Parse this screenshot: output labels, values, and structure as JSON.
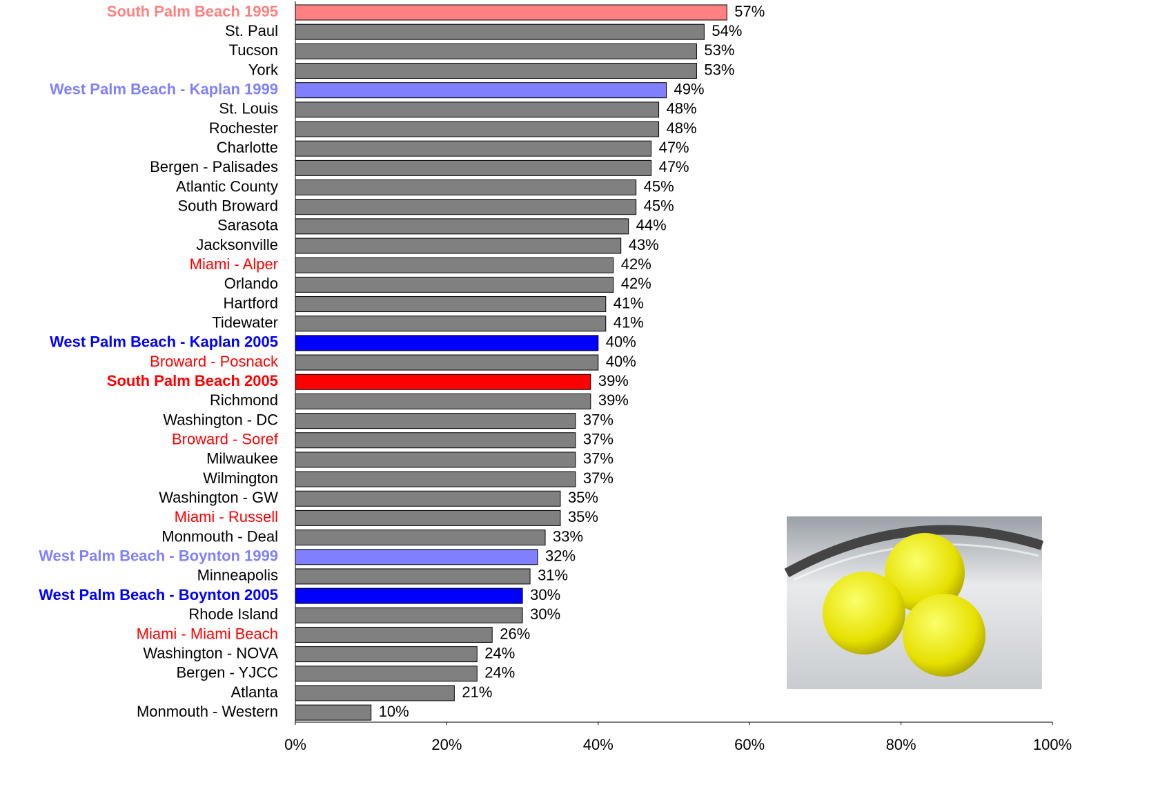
{
  "chart_data": {
    "type": "bar",
    "orientation": "horizontal",
    "categories": [
      "South Palm Beach 1995",
      "St. Paul",
      "Tucson",
      "York",
      "West Palm Beach - Kaplan 1999",
      "St. Louis",
      "Rochester",
      "Charlotte",
      "Bergen - Palisades",
      "Atlantic County",
      "South Broward",
      "Sarasota",
      "Jacksonville",
      "Miami - Alper",
      "Orlando",
      "Hartford",
      "Tidewater",
      "West Palm Beach - Kaplan 2005",
      "Broward - Posnack",
      "South Palm Beach 2005",
      "Richmond",
      "Washington - DC",
      "Broward - Soref",
      "Milwaukee",
      "Wilmington",
      "Washington - GW",
      "Miami - Russell",
      "Monmouth - Deal",
      "West Palm Beach - Boynton 1999",
      "Minneapolis",
      "West Palm Beach - Boynton 2005",
      "Rhode Island",
      "Miami - Miami Beach",
      "Washington - NOVA",
      "Bergen - YJCC",
      "Atlanta",
      "Monmouth - Western"
    ],
    "values": [
      57,
      54,
      53,
      53,
      49,
      48,
      48,
      47,
      47,
      45,
      45,
      44,
      43,
      42,
      42,
      41,
      41,
      40,
      40,
      39,
      39,
      37,
      37,
      37,
      37,
      35,
      35,
      33,
      32,
      31,
      30,
      30,
      26,
      24,
      24,
      21,
      10
    ],
    "value_labels": [
      "57%",
      "54%",
      "53%",
      "53%",
      "49%",
      "48%",
      "48%",
      "47%",
      "47%",
      "45%",
      "45%",
      "44%",
      "43%",
      "42%",
      "42%",
      "41%",
      "41%",
      "40%",
      "40%",
      "39%",
      "39%",
      "37%",
      "37%",
      "37%",
      "37%",
      "35%",
      "35%",
      "33%",
      "32%",
      "31%",
      "30%",
      "30%",
      "26%",
      "24%",
      "24%",
      "21%",
      "10%"
    ],
    "bar_colors": [
      "#ff8080",
      "#808080",
      "#808080",
      "#808080",
      "#8080ff",
      "#808080",
      "#808080",
      "#808080",
      "#808080",
      "#808080",
      "#808080",
      "#808080",
      "#808080",
      "#808080",
      "#808080",
      "#808080",
      "#808080",
      "#0000ff",
      "#808080",
      "#ff0000",
      "#808080",
      "#808080",
      "#808080",
      "#808080",
      "#808080",
      "#808080",
      "#808080",
      "#808080",
      "#8080ff",
      "#808080",
      "#0000ff",
      "#808080",
      "#808080",
      "#808080",
      "#808080",
      "#808080",
      "#808080"
    ],
    "label_colors": [
      "#ff8080",
      "#000000",
      "#000000",
      "#000000",
      "#8080ff",
      "#000000",
      "#000000",
      "#000000",
      "#000000",
      "#000000",
      "#000000",
      "#000000",
      "#000000",
      "#ff0000",
      "#000000",
      "#000000",
      "#000000",
      "#0000ff",
      "#ff0000",
      "#ff0000",
      "#000000",
      "#000000",
      "#ff0000",
      "#000000",
      "#000000",
      "#000000",
      "#ff0000",
      "#000000",
      "#8080ff",
      "#000000",
      "#0000ff",
      "#000000",
      "#ff0000",
      "#000000",
      "#000000",
      "#000000",
      "#000000"
    ],
    "bold_labels": [
      true,
      false,
      false,
      false,
      true,
      false,
      false,
      false,
      false,
      false,
      false,
      false,
      false,
      false,
      false,
      false,
      false,
      true,
      false,
      true,
      false,
      false,
      false,
      false,
      false,
      false,
      false,
      false,
      true,
      false,
      true,
      false,
      false,
      false,
      false,
      false,
      false
    ],
    "xlim": [
      0,
      100
    ],
    "xticks": [
      {
        "value": 0,
        "label": "0%"
      },
      {
        "value": 20,
        "label": "20%"
      },
      {
        "value": 40,
        "label": "40%"
      },
      {
        "value": 60,
        "label": "60%"
      },
      {
        "value": 80,
        "label": "80%"
      },
      {
        "value": 100,
        "label": "100%"
      }
    ]
  }
}
